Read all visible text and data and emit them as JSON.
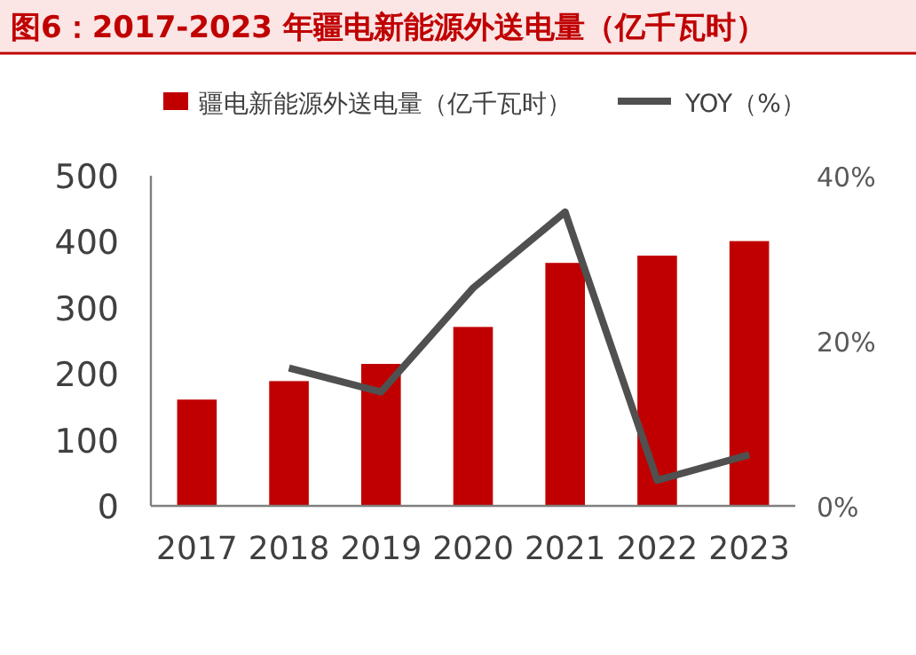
{
  "chart_data": {
    "type": "bar",
    "title": "图6：2017-2023 年疆电新能源外送电量（亿千瓦时）",
    "categories": [
      "2017",
      "2018",
      "2019",
      "2020",
      "2021",
      "2022",
      "2023"
    ],
    "series": [
      {
        "name": "疆电新能源外送电量（亿千瓦时）",
        "color": "#c00000",
        "values": [
          161,
          189,
          215,
          271,
          368,
          379,
          401
        ]
      },
      {
        "name": "YOY（%）",
        "type": "line",
        "axis": "y2",
        "color": "#505050",
        "values": [
          null,
          16.7,
          13.8,
          26.4,
          35.6,
          3.1,
          6.2
        ]
      }
    ],
    "ylim": [
      0,
      500
    ],
    "yticks": [
      0,
      100,
      200,
      300,
      400,
      500
    ],
    "y2lim": [
      0,
      40
    ],
    "y2ticks": [
      {
        "value": 0,
        "label": "0%"
      },
      {
        "value": 20,
        "label": "20%"
      },
      {
        "value": 40,
        "label": "40%"
      }
    ],
    "legend": "top",
    "grid": false,
    "marker": "none"
  }
}
